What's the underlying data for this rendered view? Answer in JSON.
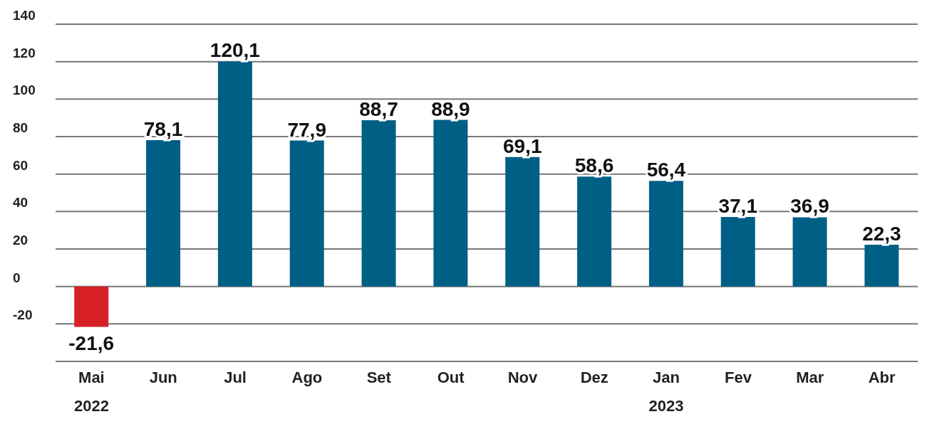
{
  "chart_data": {
    "type": "bar",
    "categories": [
      "Mai 2022",
      "Jun",
      "Jul",
      "Ago",
      "Set",
      "Out",
      "Nov",
      "Dez",
      "Jan 2023",
      "Fev",
      "Mar",
      "Abr"
    ],
    "values": [
      -21.6,
      78.1,
      120.1,
      77.9,
      88.7,
      88.9,
      69.1,
      58.6,
      56.4,
      37.1,
      36.9,
      22.3
    ],
    "colors": [
      "#d71f26",
      "#005f85",
      "#005f85",
      "#005f85",
      "#005f85",
      "#005f85",
      "#005f85",
      "#005f85",
      "#005f85",
      "#005f85",
      "#005f85",
      "#005f85"
    ],
    "value_labels": [
      "-21,6",
      "78,1",
      "120,1",
      "77,9",
      "88,7",
      "88,9",
      "69,1",
      "58,6",
      "56,4",
      "37,1",
      "36,9",
      "22,3"
    ],
    "ylim": [
      -40,
      140
    ],
    "yticks": [
      {
        "value": -40,
        "label": null
      },
      -20,
      0,
      20,
      40,
      60,
      80,
      100,
      120,
      140
    ],
    "grid": "y"
  }
}
